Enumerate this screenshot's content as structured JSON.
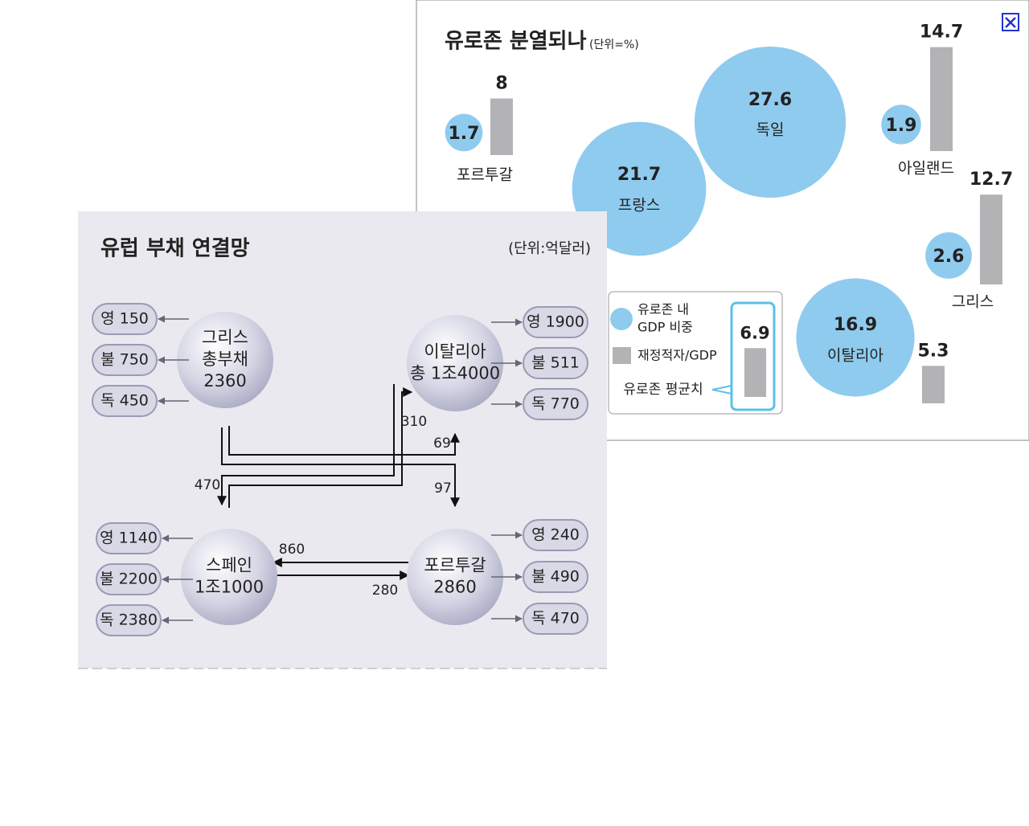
{
  "eurozone": {
    "title": "유로존 분열되나",
    "unit": "(단위=%)",
    "countries": [
      {
        "name": "포르투갈",
        "gdp_share": 1.7,
        "deficit": 8
      },
      {
        "name": "프랑스",
        "gdp_share": 21.7
      },
      {
        "name": "독일",
        "gdp_share": 27.6
      },
      {
        "name": "아일랜드",
        "gdp_share": 1.9,
        "deficit": 14.7
      },
      {
        "name": "그리스",
        "gdp_share": 2.6,
        "deficit": 12.7
      },
      {
        "name": "이탈리아",
        "gdp_share": 16.9,
        "deficit": 5.3
      }
    ],
    "legend": {
      "gdp": [
        "유로존 내",
        "GDP 비중"
      ],
      "deficit": "재정적자/GDP",
      "average_label": "유로존 평균치",
      "average": 6.9
    }
  },
  "network": {
    "title": "유럽 부채 연결망",
    "unit": "(단위:억달러)",
    "nodes": [
      {
        "label": [
          "그리스",
          "총부채",
          "2360"
        ],
        "creditors": [
          "영 150",
          "불 750",
          "독 450"
        ]
      },
      {
        "label": [
          "이탈리아",
          "총 1조4000"
        ],
        "creditors": [
          "영 1900",
          "불 511",
          "독 770"
        ]
      },
      {
        "label": [
          "스페인",
          "1조1000"
        ],
        "creditors": [
          "영 1140",
          "불 2200",
          "독 2380"
        ]
      },
      {
        "label": [
          "포르투갈",
          "2860"
        ],
        "creditors": [
          "영 240",
          "불 490",
          "독 470"
        ]
      }
    ],
    "flows": [
      310,
      69,
      470,
      97,
      860,
      280
    ]
  }
}
